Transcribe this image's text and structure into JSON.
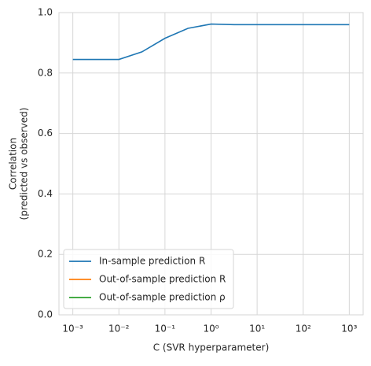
{
  "chart_data": {
    "type": "line",
    "x": [
      0.001,
      0.00316,
      0.01,
      0.0316,
      0.1,
      0.316,
      1,
      3.16,
      10,
      31.6,
      100,
      316,
      1000
    ],
    "series": [
      {
        "name": "In-sample prediction R",
        "color": "#1f77b4",
        "values": [
          0.845,
          0.845,
          0.845,
          0.87,
          0.915,
          0.948,
          0.962,
          0.96,
          0.96,
          0.96,
          0.96,
          0.96,
          0.96
        ]
      },
      {
        "name": "Out-of-sample prediction R",
        "color": "#ff7f0e",
        "values": [
          null,
          null,
          null,
          null,
          null,
          null,
          null,
          null,
          null,
          null,
          null,
          null,
          null
        ]
      },
      {
        "name": "Out-of-sample prediction ρ",
        "color": "#2ca02c",
        "values": [
          null,
          null,
          null,
          null,
          null,
          null,
          null,
          null,
          null,
          null,
          null,
          null,
          null
        ]
      }
    ],
    "xlabel": "C (SVR hyperparameter)",
    "ylabel": [
      "Correlation",
      "(predicted vs observed)"
    ],
    "xscale": "log",
    "xlim": [
      0.0005,
      2000
    ],
    "xticks": [
      {
        "value": 0.001,
        "label": "10⁻³"
      },
      {
        "value": 0.01,
        "label": "10⁻²"
      },
      {
        "value": 0.1,
        "label": "10⁻¹"
      },
      {
        "value": 1,
        "label": "10⁰"
      },
      {
        "value": 10,
        "label": "10¹"
      },
      {
        "value": 100,
        "label": "10²"
      },
      {
        "value": 1000,
        "label": "10³"
      }
    ],
    "ylim": [
      0,
      1
    ],
    "yticks": [
      {
        "value": 0,
        "label": "0.0"
      },
      0.2,
      0.4,
      0.6,
      0.8,
      {
        "value": 1,
        "label": "1.0"
      }
    ],
    "grid": true,
    "legend": "lower left"
  }
}
